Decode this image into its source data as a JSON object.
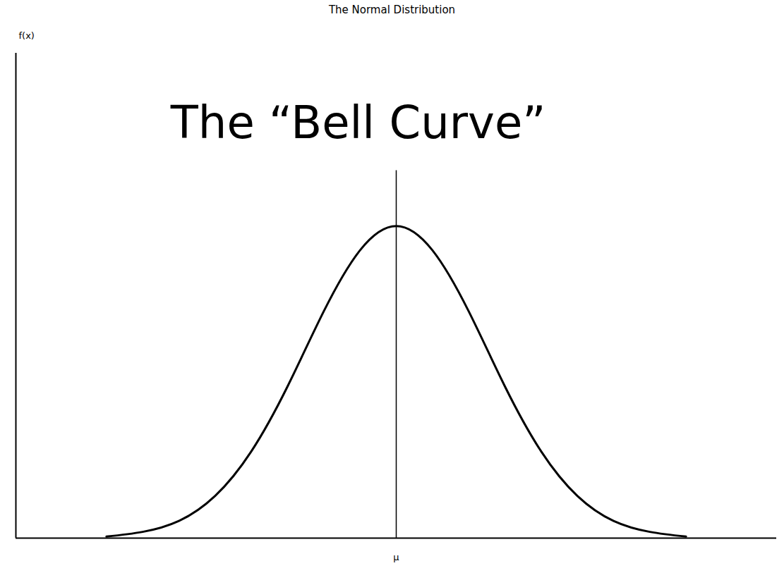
{
  "chart_data": {
    "type": "line",
    "title": "The Normal Distribution",
    "ylabel": "f(x)",
    "x": [
      -3.2,
      -2.8,
      -2.4,
      -2.0,
      -1.6,
      -1.2,
      -0.8,
      -0.4,
      0,
      0.4,
      0.8,
      1.2,
      1.6,
      2.0,
      2.4,
      2.8,
      3.2
    ],
    "values": [
      0.002,
      0.008,
      0.022,
      0.054,
      0.111,
      0.194,
      0.29,
      0.368,
      0.399,
      0.368,
      0.29,
      0.194,
      0.111,
      0.054,
      0.022,
      0.008,
      0.002
    ],
    "color": "#000000",
    "xlim": [
      -4.2,
      4.2
    ],
    "ylim": [
      0,
      0.62
    ],
    "xticks": [
      {
        "value": 0,
        "label": "μ"
      }
    ],
    "yticks": [],
    "tick_labels": "x",
    "grid": false,
    "annotations": [
      {
        "text": "The “Bell Curve”",
        "x": -0.42,
        "y": 0.53
      }
    ],
    "mean_line": {
      "x": 0,
      "y_top": 0.47
    }
  }
}
